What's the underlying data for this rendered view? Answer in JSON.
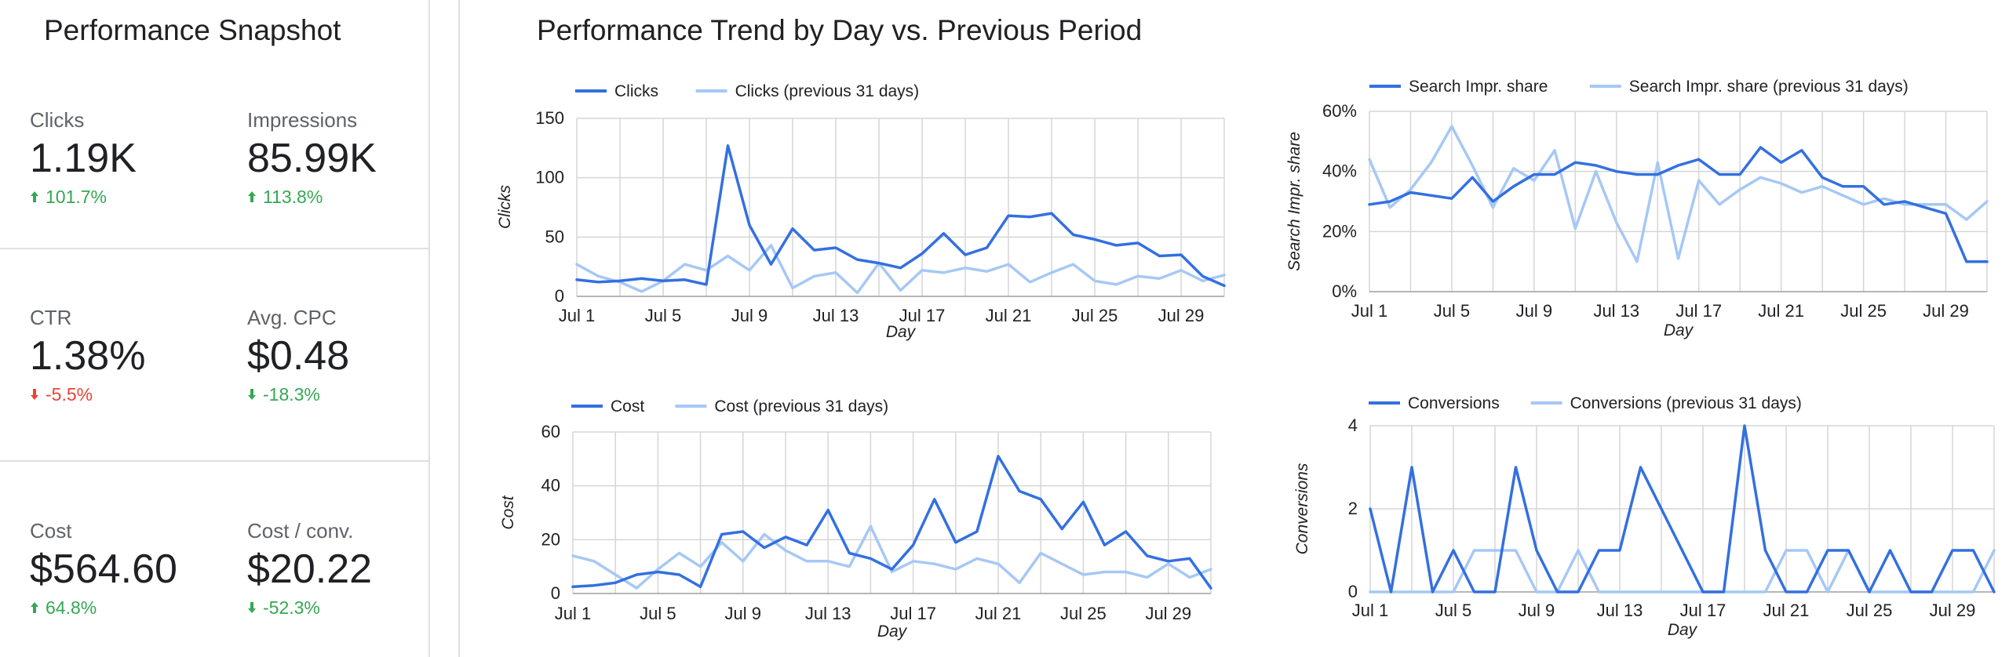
{
  "snapshot": {
    "title": "Performance Snapshot",
    "metrics": [
      {
        "label": "Clicks",
        "value": "1.19K",
        "delta": "101.7%",
        "direction": "up",
        "status": "good"
      },
      {
        "label": "Impressions",
        "value": "85.99K",
        "delta": "113.8%",
        "direction": "up",
        "status": "good"
      },
      {
        "label": "CTR",
        "value": "1.38%",
        "delta": "-5.5%",
        "direction": "down",
        "status": "bad"
      },
      {
        "label": "Avg. CPC",
        "value": "$0.48",
        "delta": "-18.3%",
        "direction": "down",
        "status": "good"
      },
      {
        "label": "Cost",
        "value": "$564.60",
        "delta": "64.8%",
        "direction": "up",
        "status": "good"
      },
      {
        "label": "Cost / conv.",
        "value": "$20.22",
        "delta": "-52.3%",
        "direction": "down",
        "status": "good"
      }
    ]
  },
  "trend_title": "Performance Trend by Day vs. Previous Period",
  "colors": {
    "current": "#3370e0",
    "previous": "#a6c8f5",
    "grid": "#d6d6d6",
    "good": "#34a853",
    "bad": "#ea4335",
    "text": "#202124"
  },
  "chart_data": [
    {
      "type": "line",
      "xlabel": "Day",
      "ylabel": "Clicks",
      "ylim": [
        0,
        150
      ],
      "yticks": [
        "0",
        "50",
        "100",
        "150"
      ],
      "xticks": [
        "Jul 1",
        "Jul 5",
        "Jul 9",
        "Jul 13",
        "Jul 17",
        "Jul 21",
        "Jul 25",
        "Jul 29"
      ],
      "grid": true,
      "legend_position": "top-left",
      "x": [
        "Jul 1",
        "Jul 2",
        "Jul 3",
        "Jul 4",
        "Jul 5",
        "Jul 6",
        "Jul 7",
        "Jul 8",
        "Jul 9",
        "Jul 10",
        "Jul 11",
        "Jul 12",
        "Jul 13",
        "Jul 14",
        "Jul 15",
        "Jul 16",
        "Jul 17",
        "Jul 18",
        "Jul 19",
        "Jul 20",
        "Jul 21",
        "Jul 22",
        "Jul 23",
        "Jul 24",
        "Jul 25",
        "Jul 26",
        "Jul 27",
        "Jul 28",
        "Jul 29",
        "Jul 30",
        "Jul 31"
      ],
      "series": [
        {
          "name": "Clicks",
          "values": [
            14,
            12,
            13,
            15,
            13,
            14,
            10,
            127,
            60,
            27,
            57,
            39,
            41,
            31,
            28,
            24,
            36,
            53,
            35,
            41,
            68,
            67,
            70,
            52,
            48,
            43,
            45,
            34,
            35,
            17,
            9
          ]
        },
        {
          "name": "Clicks (previous 31 days)",
          "values": [
            27,
            17,
            12,
            4,
            13,
            27,
            22,
            34,
            22,
            43,
            7,
            17,
            20,
            3,
            28,
            5,
            22,
            20,
            24,
            21,
            27,
            12,
            20,
            27,
            13,
            10,
            17,
            15,
            22,
            13,
            18
          ]
        }
      ]
    },
    {
      "type": "line",
      "xlabel": "Day",
      "ylabel": "Search Impr. share",
      "ylim": [
        0,
        60
      ],
      "yticks": [
        "0%",
        "20%",
        "40%",
        "60%"
      ],
      "xticks": [
        "Jul 1",
        "Jul 5",
        "Jul 9",
        "Jul 13",
        "Jul 17",
        "Jul 21",
        "Jul 25",
        "Jul 29"
      ],
      "grid": true,
      "legend_position": "top-left",
      "x": [
        "Jul 1",
        "Jul 2",
        "Jul 3",
        "Jul 4",
        "Jul 5",
        "Jul 6",
        "Jul 7",
        "Jul 8",
        "Jul 9",
        "Jul 10",
        "Jul 11",
        "Jul 12",
        "Jul 13",
        "Jul 14",
        "Jul 15",
        "Jul 16",
        "Jul 17",
        "Jul 18",
        "Jul 19",
        "Jul 20",
        "Jul 21",
        "Jul 22",
        "Jul 23",
        "Jul 24",
        "Jul 25",
        "Jul 26",
        "Jul 27",
        "Jul 28",
        "Jul 29",
        "Jul 30",
        "Jul 31"
      ],
      "series": [
        {
          "name": "Search Impr. share",
          "values": [
            29,
            30,
            33,
            32,
            31,
            38,
            30,
            35,
            39,
            39,
            43,
            42,
            40,
            39,
            39,
            42,
            44,
            39,
            39,
            48,
            43,
            47,
            38,
            35,
            35,
            29,
            30,
            28,
            26,
            10,
            10
          ]
        },
        {
          "name": "Search Impr. share (previous 31 days)",
          "values": [
            44,
            28,
            34,
            43,
            55,
            42,
            28,
            41,
            37,
            47,
            21,
            40,
            23,
            10,
            43,
            11,
            37,
            29,
            34,
            38,
            36,
            33,
            35,
            32,
            29,
            31,
            29,
            29,
            29,
            24,
            30
          ]
        }
      ]
    },
    {
      "type": "line",
      "xlabel": "Day",
      "ylabel": "Cost",
      "ylim": [
        0,
        60
      ],
      "yticks": [
        "0",
        "20",
        "40",
        "60"
      ],
      "xticks": [
        "Jul 1",
        "Jul 5",
        "Jul 9",
        "Jul 13",
        "Jul 17",
        "Jul 21",
        "Jul 25",
        "Jul 29"
      ],
      "grid": true,
      "legend_position": "top-left",
      "x": [
        "Jul 1",
        "Jul 2",
        "Jul 3",
        "Jul 4",
        "Jul 5",
        "Jul 6",
        "Jul 7",
        "Jul 8",
        "Jul 9",
        "Jul 10",
        "Jul 11",
        "Jul 12",
        "Jul 13",
        "Jul 14",
        "Jul 15",
        "Jul 16",
        "Jul 17",
        "Jul 18",
        "Jul 19",
        "Jul 20",
        "Jul 21",
        "Jul 22",
        "Jul 23",
        "Jul 24",
        "Jul 25",
        "Jul 26",
        "Jul 27",
        "Jul 28",
        "Jul 29",
        "Jul 30",
        "Jul 31"
      ],
      "series": [
        {
          "name": "Cost",
          "values": [
            2.5,
            3,
            4,
            7,
            8,
            7,
            2.5,
            22,
            23,
            17,
            21,
            18,
            31,
            15,
            13,
            9,
            18,
            35,
            19,
            23,
            51,
            38,
            35,
            24,
            34,
            18,
            23,
            14,
            12,
            13,
            2
          ]
        },
        {
          "name": "Cost (previous 31 days)",
          "values": [
            14,
            12,
            7,
            2,
            9,
            15,
            10,
            19,
            12,
            22,
            16,
            12,
            12,
            10,
            25,
            8,
            12,
            11,
            9,
            13,
            11,
            4,
            15,
            11,
            7,
            8,
            8,
            6,
            11,
            6,
            9
          ]
        }
      ]
    },
    {
      "type": "line",
      "xlabel": "Day",
      "ylabel": "Conversions",
      "ylim": [
        0,
        4
      ],
      "yticks": [
        "0",
        "2",
        "4"
      ],
      "xticks": [
        "Jul 1",
        "Jul 5",
        "Jul 9",
        "Jul 13",
        "Jul 17",
        "Jul 21",
        "Jul 25",
        "Jul 29"
      ],
      "grid": true,
      "legend_position": "top-left",
      "x": [
        "Jul 1",
        "Jul 2",
        "Jul 3",
        "Jul 4",
        "Jul 5",
        "Jul 6",
        "Jul 7",
        "Jul 8",
        "Jul 9",
        "Jul 10",
        "Jul 11",
        "Jul 12",
        "Jul 13",
        "Jul 14",
        "Jul 15",
        "Jul 16",
        "Jul 17",
        "Jul 18",
        "Jul 19",
        "Jul 20",
        "Jul 21",
        "Jul 22",
        "Jul 23",
        "Jul 24",
        "Jul 25",
        "Jul 26",
        "Jul 27",
        "Jul 28",
        "Jul 29",
        "Jul 30",
        "Jul 31"
      ],
      "series": [
        {
          "name": "Conversions",
          "values": [
            2,
            0,
            3,
            0,
            1,
            0,
            0,
            3,
            1,
            0,
            0,
            1,
            1,
            3,
            2,
            1,
            0,
            0,
            4,
            1,
            0,
            0,
            1,
            1,
            0,
            1,
            0,
            0,
            1,
            1,
            0
          ]
        },
        {
          "name": "Conversions (previous 31 days)",
          "values": [
            0,
            0,
            0,
            0,
            0,
            1,
            1,
            1,
            0,
            0,
            1,
            0,
            0,
            0,
            0,
            0,
            0,
            0,
            0,
            0,
            1,
            1,
            0,
            1,
            0,
            0,
            0,
            0,
            0,
            0,
            1
          ]
        }
      ]
    }
  ]
}
